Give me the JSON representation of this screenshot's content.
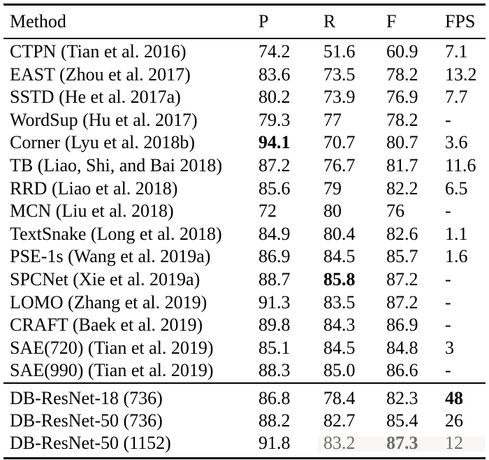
{
  "table": {
    "columns": [
      "Method",
      "P",
      "R",
      "F",
      "FPS"
    ],
    "groups": [
      {
        "rows": [
          {
            "method": "CTPN (Tian et al. 2016)",
            "values": [
              "74.2",
              "51.6",
              "60.9",
              "7.1"
            ],
            "bold_cols": []
          },
          {
            "method": "EAST (Zhou et al. 2017)",
            "values": [
              "83.6",
              "73.5",
              "78.2",
              "13.2"
            ],
            "bold_cols": []
          },
          {
            "method": "SSTD (He et al. 2017a)",
            "values": [
              "80.2",
              "73.9",
              "76.9",
              "7.7"
            ],
            "bold_cols": []
          },
          {
            "method": "WordSup (Hu et al. 2017)",
            "values": [
              "79.3",
              "77",
              "78.2",
              "-"
            ],
            "bold_cols": []
          },
          {
            "method": "Corner (Lyu et al. 2018b)",
            "values": [
              "94.1",
              "70.7",
              "80.7",
              "3.6"
            ],
            "bold_cols": [
              0
            ]
          },
          {
            "method": "TB (Liao, Shi, and Bai 2018)",
            "values": [
              "87.2",
              "76.7",
              "81.7",
              "11.6"
            ],
            "bold_cols": []
          },
          {
            "method": "RRD (Liao et al. 2018)",
            "values": [
              "85.6",
              "79",
              "82.2",
              "6.5"
            ],
            "bold_cols": []
          },
          {
            "method": "MCN (Liu et al. 2018)",
            "values": [
              "72",
              "80",
              "76",
              "-"
            ],
            "bold_cols": []
          },
          {
            "method": "TextSnake (Long et al. 2018)",
            "values": [
              "84.9",
              "80.4",
              "82.6",
              "1.1"
            ],
            "bold_cols": []
          },
          {
            "method": "PSE-1s (Wang et al. 2019a)",
            "values": [
              "86.9",
              "84.5",
              "85.7",
              "1.6"
            ],
            "bold_cols": []
          },
          {
            "method": "SPCNet (Xie et al. 2019a)",
            "values": [
              "88.7",
              "85.8",
              "87.2",
              "-"
            ],
            "bold_cols": [
              1
            ]
          },
          {
            "method": "LOMO (Zhang et al. 2019)",
            "values": [
              "91.3",
              "83.5",
              "87.2",
              "-"
            ],
            "bold_cols": []
          },
          {
            "method": "CRAFT (Baek et al. 2019)",
            "values": [
              "89.8",
              "84.3",
              "86.9",
              "-"
            ],
            "bold_cols": []
          },
          {
            "method": "SAE(720) (Tian et al. 2019)",
            "values": [
              "85.1",
              "84.5",
              "84.8",
              "3"
            ],
            "bold_cols": []
          },
          {
            "method": "SAE(990) (Tian et al. 2019)",
            "values": [
              "88.3",
              "85.0",
              "86.6",
              "-"
            ],
            "bold_cols": []
          }
        ]
      },
      {
        "rows": [
          {
            "method": "DB-ResNet-18 (736)",
            "values": [
              "86.8",
              "78.4",
              "82.3",
              "48"
            ],
            "bold_cols": [
              3
            ]
          },
          {
            "method": "DB-ResNet-50 (736)",
            "values": [
              "88.2",
              "82.7",
              "85.4",
              "26"
            ],
            "bold_cols": []
          },
          {
            "method": "DB-ResNet-50 (1152)",
            "values": [
              "91.8",
              "83.2",
              "87.3",
              "12"
            ],
            "bold_cols": [
              2
            ]
          }
        ]
      }
    ]
  }
}
